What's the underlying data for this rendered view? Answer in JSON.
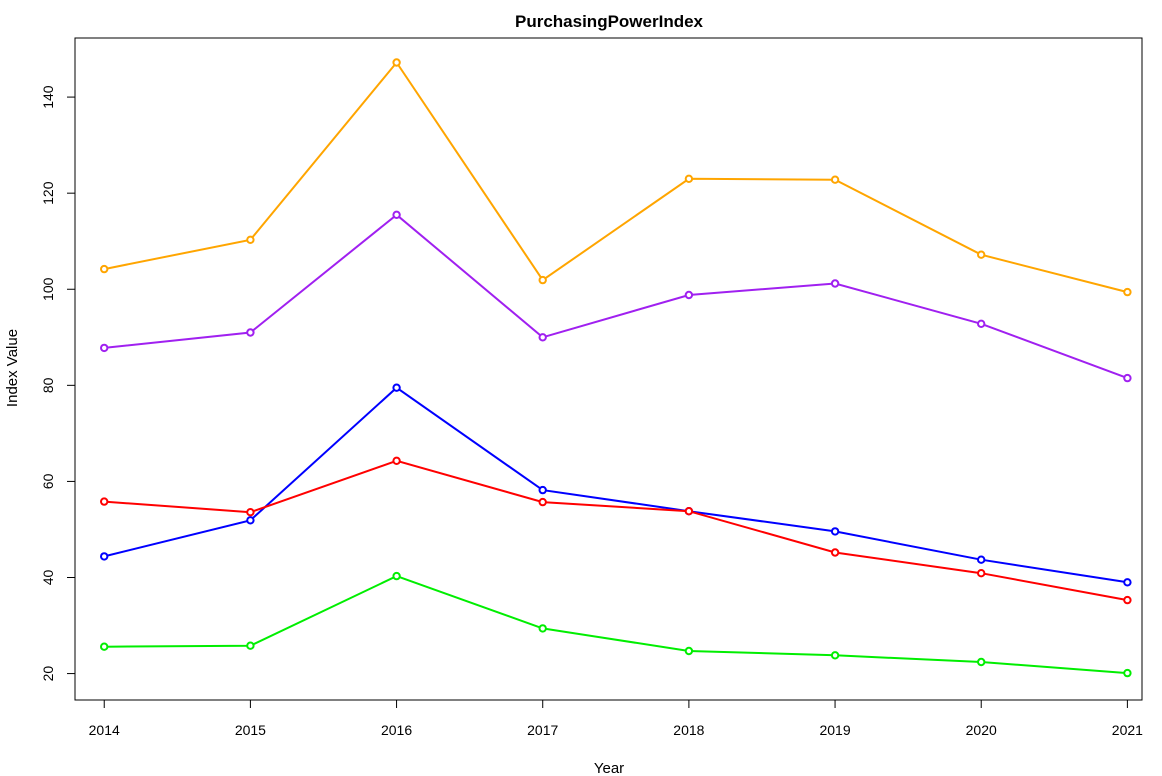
{
  "chart_data": {
    "type": "line",
    "title": "PurchasingPowerIndex",
    "xlabel": "Year",
    "ylabel": "Index Value",
    "x": [
      2014,
      2015,
      2016,
      2017,
      2018,
      2019,
      2020,
      2021
    ],
    "xlim": [
      2013.8,
      2021.1
    ],
    "ylim": [
      14.5,
      152.3
    ],
    "yticks": [
      20,
      40,
      60,
      80,
      100,
      120,
      140
    ],
    "grid": false,
    "legend": "none",
    "series": [
      {
        "color": "#FFA500",
        "values": [
          104.2,
          110.3,
          147.2,
          101.9,
          123.0,
          122.8,
          107.2,
          99.4
        ]
      },
      {
        "color": "#A020F0",
        "values": [
          87.8,
          91.0,
          115.5,
          90.0,
          98.8,
          101.2,
          92.8,
          81.5
        ]
      },
      {
        "color": "#0000FF",
        "values": [
          44.4,
          51.9,
          79.5,
          58.2,
          53.8,
          49.6,
          43.7,
          39.0
        ]
      },
      {
        "color": "#FF0000",
        "values": [
          55.8,
          53.6,
          64.3,
          55.7,
          53.8,
          45.2,
          40.9,
          35.3
        ]
      },
      {
        "color": "#00EE00",
        "values": [
          25.6,
          25.8,
          40.3,
          29.4,
          24.7,
          23.8,
          22.4,
          20.1
        ]
      }
    ]
  }
}
